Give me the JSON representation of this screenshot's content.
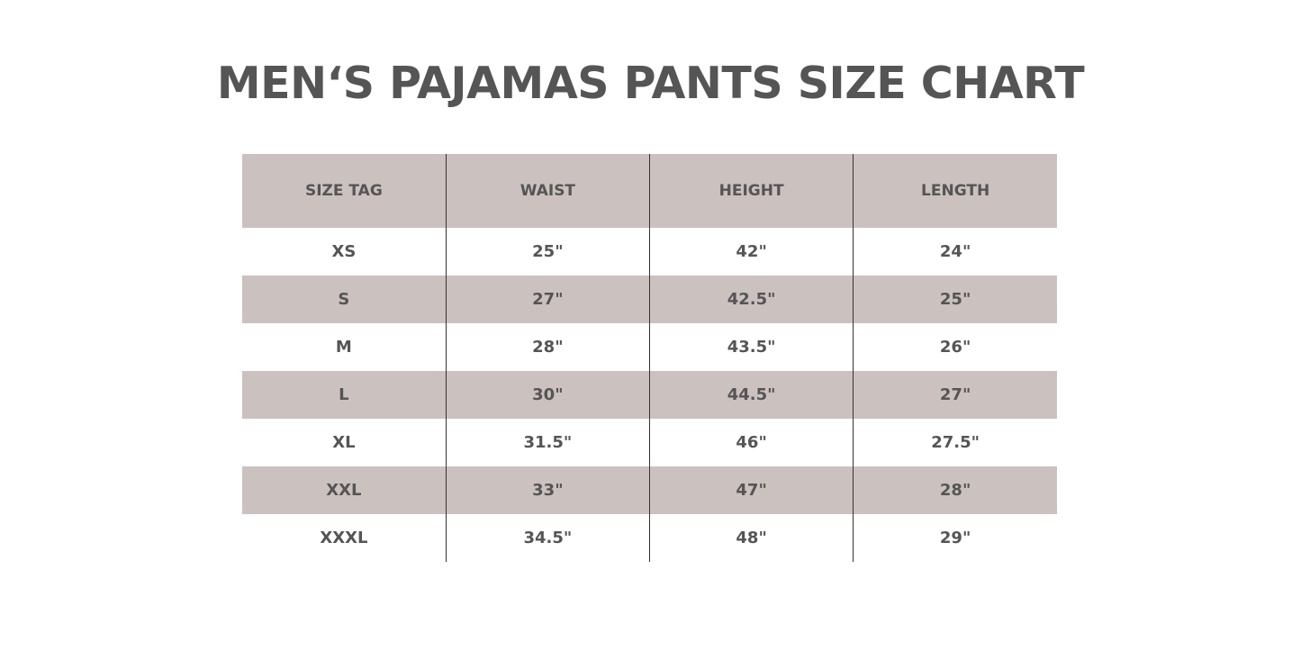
{
  "title": "MEN‘S PAJAMAS PANTS SIZE CHART",
  "colors": {
    "header_bg": "#cbc1bf",
    "stripe_bg": "#cbc1bf",
    "text": "#555555"
  },
  "table": {
    "headers": [
      "SIZE TAG",
      "WAIST",
      "HEIGHT",
      "LENGTH"
    ],
    "rows": [
      [
        "XS",
        "25\"",
        "42\"",
        "24\""
      ],
      [
        "S",
        "27\"",
        "42.5\"",
        "25\""
      ],
      [
        "M",
        "28\"",
        "43.5\"",
        "26\""
      ],
      [
        "L",
        "30\"",
        "44.5\"",
        "27\""
      ],
      [
        "XL",
        "31.5\"",
        "46\"",
        "27.5\""
      ],
      [
        "XXL",
        "33\"",
        "47\"",
        "28\""
      ],
      [
        "XXXL",
        "34.5\"",
        "48\"",
        "29\""
      ]
    ]
  }
}
